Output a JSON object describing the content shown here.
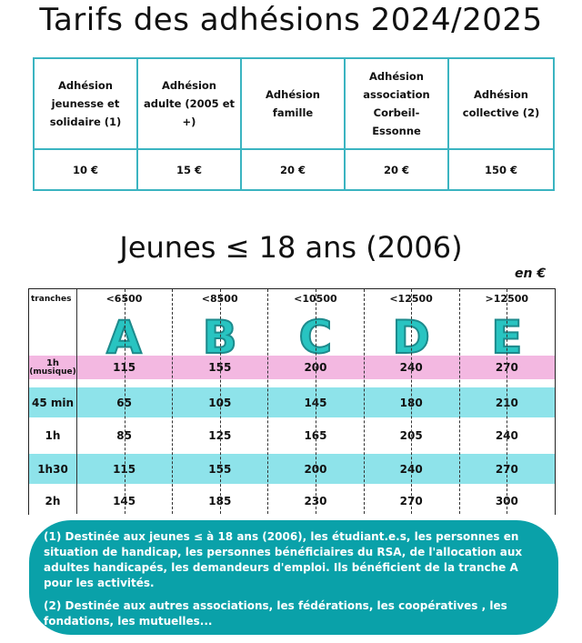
{
  "title": "Tarifs des adhésions 2024/2025",
  "adhesions": {
    "headers": [
      "Adhésion jeunesse et solidaire (1)",
      "Adhésion adulte (2005 et +)",
      "Adhésion famille",
      "Adhésion association Corbeil-Essonne",
      "Adhésion collective (2)"
    ],
    "values": [
      "10 €",
      "15 €",
      "20 €",
      "20 €",
      "150 €"
    ]
  },
  "jeunes_title": "Jeunes ≤ 18 ans (2006)",
  "unit": "en €",
  "grid": {
    "tranches_label": "tranches",
    "tranches": [
      {
        "threshold": "<6500",
        "letter": "A"
      },
      {
        "threshold": "<8500",
        "letter": "B"
      },
      {
        "threshold": "<10500",
        "letter": "C"
      },
      {
        "threshold": "<12500",
        "letter": "D"
      },
      {
        "threshold": ">12500",
        "letter": "E"
      }
    ],
    "rows": [
      {
        "label": "1h",
        "sublabel": "(musique)",
        "values": [
          "115",
          "155",
          "200",
          "240",
          "270"
        ],
        "color": "#f3b8e1"
      },
      {
        "label": "45 min",
        "values": [
          "65",
          "105",
          "145",
          "180",
          "210"
        ],
        "color": "#8ee3ea"
      },
      {
        "label": "1h",
        "values": [
          "85",
          "125",
          "165",
          "205",
          "240"
        ],
        "color": "#ffffff"
      },
      {
        "label": "1h30",
        "values": [
          "115",
          "155",
          "200",
          "240",
          "270"
        ],
        "color": "#8ee3ea"
      },
      {
        "label": "2h",
        "values": [
          "145",
          "185",
          "230",
          "270",
          "300"
        ],
        "color": "#ffffff"
      }
    ]
  },
  "notes": {
    "note1": "(1) Destinée aux jeunes ≤ à 18 ans (2006), les étudiant.e.s, les personnes en situation de handicap, les personnes bénéficiaires du RSA, de l'allocation aux adultes handicapés, les demandeurs d'emploi. Ils bénéficient de la tranche A pour les activités.",
    "note2": "(2) Destinée aux autres associations, les fédérations, les coopératives , les fondations, les mutuelles..."
  }
}
